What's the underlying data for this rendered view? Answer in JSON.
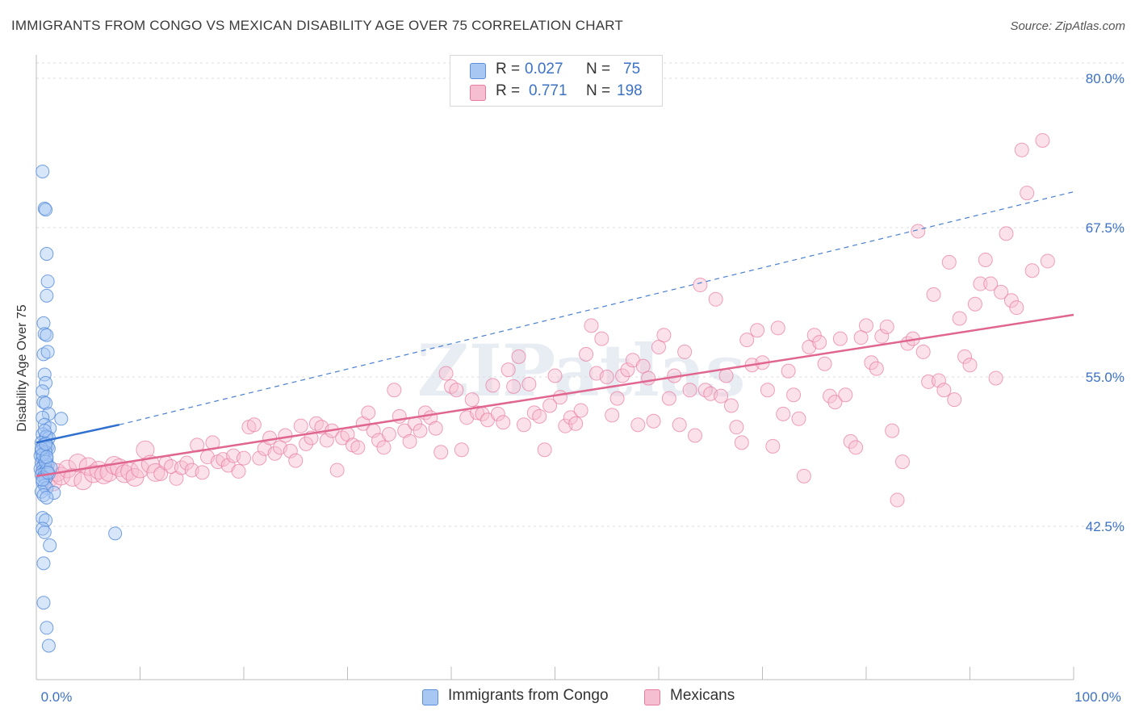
{
  "header": {
    "title": "IMMIGRANTS FROM CONGO VS MEXICAN DISABILITY AGE OVER 75 CORRELATION CHART",
    "source": "Source: ZipAtlas.com"
  },
  "legend": {
    "rows": [
      {
        "r_label": "R =",
        "r_value": "0.027",
        "n_label": "N =",
        "n_value": "75"
      },
      {
        "r_label": "R =",
        "r_value": "0.771",
        "n_label": "N =",
        "n_value": "198"
      }
    ]
  },
  "watermark": "ZIPatlas",
  "colors": {
    "congo": "#5a8fdc",
    "congo_fill": "#a9c7f3",
    "mexicans": "#e8799f",
    "mexicans_fill": "#f6bfd1",
    "tick_text": "#3c72c6"
  },
  "chart_data": {
    "type": "scatter",
    "xlabel": "",
    "ylabel": "Disability Age Over 75",
    "xlim": [
      0,
      100
    ],
    "ylim": [
      30,
      81
    ],
    "x_tick_labels": [
      "0.0%",
      "100.0%"
    ],
    "y_ticks": [
      42.5,
      55.0,
      67.5,
      80.0
    ],
    "y_tick_labels": [
      "42.5%",
      "55.0%",
      "67.5%",
      "80.0%"
    ],
    "grid": "horizontal dashed",
    "legend_position": "top-center",
    "series": [
      {
        "name": "Immigrants from Congo",
        "trend": {
          "x0": 0,
          "y0": 49.5,
          "x1": 8,
          "y1": 51.0,
          "dashed_to_x": 100,
          "dashed_to_y": 70.5
        },
        "points": [
          [
            0.6,
            72.2
          ],
          [
            0.8,
            69.1
          ],
          [
            0.9,
            69.0
          ],
          [
            1.0,
            65.3
          ],
          [
            1.1,
            63.0
          ],
          [
            1.0,
            61.8
          ],
          [
            0.7,
            59.5
          ],
          [
            0.8,
            58.6
          ],
          [
            1.0,
            58.5
          ],
          [
            0.7,
            56.9
          ],
          [
            1.1,
            57.1
          ],
          [
            0.8,
            55.2
          ],
          [
            0.9,
            54.5
          ],
          [
            0.6,
            53.8
          ],
          [
            0.7,
            52.9
          ],
          [
            0.9,
            52.8
          ],
          [
            1.2,
            51.9
          ],
          [
            0.6,
            51.6
          ],
          [
            0.8,
            51.0
          ],
          [
            1.3,
            50.7
          ],
          [
            0.6,
            50.2
          ],
          [
            0.9,
            50.0
          ],
          [
            1.0,
            50.0
          ],
          [
            1.2,
            49.9
          ],
          [
            0.5,
            49.5
          ],
          [
            0.7,
            49.3
          ],
          [
            0.9,
            49.1
          ],
          [
            1.1,
            49.2
          ],
          [
            1.2,
            49.0
          ],
          [
            0.5,
            48.8
          ],
          [
            0.7,
            48.6
          ],
          [
            0.9,
            48.7
          ],
          [
            0.4,
            48.4
          ],
          [
            0.6,
            48.2
          ],
          [
            0.8,
            48.0
          ],
          [
            1.0,
            48.1
          ],
          [
            0.5,
            47.8
          ],
          [
            0.7,
            47.6
          ],
          [
            0.9,
            47.5
          ],
          [
            1.1,
            47.6
          ],
          [
            0.4,
            47.3
          ],
          [
            0.6,
            47.1
          ],
          [
            0.8,
            47.0
          ],
          [
            1.0,
            47.2
          ],
          [
            1.2,
            46.9
          ],
          [
            0.5,
            46.8
          ],
          [
            0.7,
            46.6
          ],
          [
            0.9,
            46.5
          ],
          [
            0.6,
            46.2
          ],
          [
            0.8,
            45.9
          ],
          [
            1.0,
            45.7
          ],
          [
            0.5,
            45.4
          ],
          [
            1.7,
            45.3
          ],
          [
            0.7,
            45.1
          ],
          [
            1.0,
            44.9
          ],
          [
            0.6,
            43.2
          ],
          [
            0.9,
            43.0
          ],
          [
            0.6,
            42.3
          ],
          [
            0.8,
            42.0
          ],
          [
            1.3,
            40.9
          ],
          [
            0.7,
            39.4
          ],
          [
            0.7,
            36.1
          ],
          [
            1.0,
            34.0
          ],
          [
            1.2,
            32.5
          ],
          [
            7.6,
            41.9
          ],
          [
            2.4,
            51.5
          ],
          [
            0.6,
            48.5
          ],
          [
            0.9,
            47.9
          ],
          [
            1.4,
            47.4
          ],
          [
            0.5,
            49.0
          ],
          [
            0.8,
            50.5
          ],
          [
            1.0,
            48.3
          ],
          [
            0.6,
            46.4
          ],
          [
            0.9,
            49.4
          ],
          [
            1.1,
            47.0
          ]
        ]
      },
      {
        "name": "Mexicans",
        "trend": {
          "x0": 0,
          "y0": 46.7,
          "x1": 100,
          "y1": 60.2
        },
        "points": [
          [
            0.8,
            47.1
          ],
          [
            1.2,
            46.5
          ],
          [
            1.6,
            46.2
          ],
          [
            2.0,
            47.0
          ],
          [
            2.4,
            46.7
          ],
          [
            3.0,
            47.3
          ],
          [
            3.5,
            46.6
          ],
          [
            4.0,
            47.8
          ],
          [
            4.5,
            46.3
          ],
          [
            5.0,
            47.5
          ],
          [
            5.5,
            46.9
          ],
          [
            6.0,
            47.2
          ],
          [
            6.5,
            46.8
          ],
          [
            7.0,
            47.0
          ],
          [
            7.5,
            47.6
          ],
          [
            8.0,
            47.4
          ],
          [
            8.5,
            46.9
          ],
          [
            9.0,
            47.1
          ],
          [
            9.5,
            46.6
          ],
          [
            10.0,
            47.3
          ],
          [
            10.5,
            48.9
          ],
          [
            11.0,
            47.7
          ],
          [
            11.5,
            47.0
          ],
          [
            12.0,
            46.9
          ],
          [
            12.5,
            47.8
          ],
          [
            13.0,
            47.5
          ],
          [
            13.5,
            46.5
          ],
          [
            14.0,
            47.4
          ],
          [
            14.5,
            47.8
          ],
          [
            15.0,
            47.2
          ],
          [
            15.5,
            49.3
          ],
          [
            16.0,
            47.0
          ],
          [
            16.5,
            48.3
          ],
          [
            17.0,
            49.5
          ],
          [
            17.5,
            47.9
          ],
          [
            18.0,
            48.1
          ],
          [
            18.5,
            47.6
          ],
          [
            19.0,
            48.4
          ],
          [
            19.5,
            47.1
          ],
          [
            20.0,
            48.2
          ],
          [
            20.5,
            50.8
          ],
          [
            21.0,
            51.0
          ],
          [
            21.5,
            48.2
          ],
          [
            22.0,
            49.0
          ],
          [
            22.5,
            49.9
          ],
          [
            23.0,
            48.6
          ],
          [
            23.5,
            49.1
          ],
          [
            24.0,
            50.1
          ],
          [
            24.5,
            48.8
          ],
          [
            25.0,
            48.0
          ],
          [
            25.5,
            50.9
          ],
          [
            26.0,
            49.4
          ],
          [
            26.5,
            49.9
          ],
          [
            27.0,
            51.1
          ],
          [
            27.5,
            50.8
          ],
          [
            28.0,
            49.7
          ],
          [
            28.5,
            50.5
          ],
          [
            29.0,
            47.2
          ],
          [
            29.5,
            49.9
          ],
          [
            30.0,
            50.2
          ],
          [
            30.5,
            49.3
          ],
          [
            31.0,
            49.1
          ],
          [
            31.5,
            51.1
          ],
          [
            32.0,
            52.0
          ],
          [
            32.5,
            50.5
          ],
          [
            33.0,
            49.7
          ],
          [
            33.5,
            49.1
          ],
          [
            34.0,
            50.2
          ],
          [
            34.5,
            53.9
          ],
          [
            35.0,
            51.7
          ],
          [
            35.5,
            50.5
          ],
          [
            36.0,
            49.6
          ],
          [
            36.5,
            51.1
          ],
          [
            37.0,
            50.5
          ],
          [
            37.5,
            52.0
          ],
          [
            38.0,
            51.6
          ],
          [
            38.5,
            50.7
          ],
          [
            39.0,
            48.7
          ],
          [
            39.5,
            55.3
          ],
          [
            40.0,
            54.2
          ],
          [
            40.5,
            53.9
          ],
          [
            41.0,
            48.9
          ],
          [
            41.5,
            51.6
          ],
          [
            42.0,
            53.1
          ],
          [
            42.5,
            52.0
          ],
          [
            43.0,
            51.9
          ],
          [
            43.5,
            51.4
          ],
          [
            44.0,
            54.3
          ],
          [
            44.5,
            51.9
          ],
          [
            45.0,
            51.2
          ],
          [
            45.5,
            55.6
          ],
          [
            46.0,
            54.2
          ],
          [
            46.5,
            56.7
          ],
          [
            47.0,
            51.0
          ],
          [
            47.5,
            54.4
          ],
          [
            48.0,
            52.0
          ],
          [
            48.5,
            51.7
          ],
          [
            49.0,
            48.9
          ],
          [
            49.5,
            52.6
          ],
          [
            50.0,
            55.1
          ],
          [
            50.5,
            53.3
          ],
          [
            51.0,
            50.9
          ],
          [
            51.5,
            51.6
          ],
          [
            52.0,
            51.1
          ],
          [
            52.5,
            52.2
          ],
          [
            53.0,
            56.9
          ],
          [
            53.5,
            59.3
          ],
          [
            54.0,
            55.3
          ],
          [
            54.5,
            58.2
          ],
          [
            55.0,
            55.0
          ],
          [
            55.5,
            51.8
          ],
          [
            56.0,
            53.2
          ],
          [
            56.5,
            55.1
          ],
          [
            57.0,
            55.6
          ],
          [
            57.5,
            56.4
          ],
          [
            58.0,
            51.0
          ],
          [
            58.5,
            55.9
          ],
          [
            59.0,
            54.9
          ],
          [
            59.5,
            51.3
          ],
          [
            60.0,
            57.5
          ],
          [
            60.5,
            58.5
          ],
          [
            61.0,
            53.2
          ],
          [
            61.5,
            55.1
          ],
          [
            62.0,
            51.0
          ],
          [
            62.5,
            57.1
          ],
          [
            63.0,
            53.9
          ],
          [
            63.5,
            50.1
          ],
          [
            64.0,
            62.7
          ],
          [
            64.5,
            53.9
          ],
          [
            65.0,
            53.6
          ],
          [
            65.5,
            61.5
          ],
          [
            66.0,
            53.4
          ],
          [
            66.5,
            55.1
          ],
          [
            67.0,
            52.6
          ],
          [
            67.5,
            50.8
          ],
          [
            68.0,
            49.5
          ],
          [
            68.5,
            58.1
          ],
          [
            69.0,
            56.0
          ],
          [
            69.5,
            58.9
          ],
          [
            70.0,
            56.2
          ],
          [
            70.5,
            53.9
          ],
          [
            71.0,
            49.2
          ],
          [
            71.5,
            59.1
          ],
          [
            72.0,
            51.9
          ],
          [
            72.5,
            55.5
          ],
          [
            73.0,
            53.5
          ],
          [
            73.5,
            51.5
          ],
          [
            74.0,
            46.7
          ],
          [
            74.5,
            57.5
          ],
          [
            75.0,
            58.5
          ],
          [
            75.5,
            57.9
          ],
          [
            76.0,
            56.1
          ],
          [
            76.5,
            53.4
          ],
          [
            77.0,
            52.9
          ],
          [
            77.5,
            58.2
          ],
          [
            78.0,
            53.5
          ],
          [
            78.5,
            49.6
          ],
          [
            79.0,
            49.1
          ],
          [
            79.5,
            58.3
          ],
          [
            80.0,
            59.3
          ],
          [
            80.5,
            56.2
          ],
          [
            81.0,
            55.7
          ],
          [
            81.5,
            58.4
          ],
          [
            82.0,
            59.2
          ],
          [
            82.5,
            50.5
          ],
          [
            83.0,
            44.7
          ],
          [
            83.5,
            47.9
          ],
          [
            84.0,
            57.8
          ],
          [
            84.5,
            58.2
          ],
          [
            85.0,
            67.2
          ],
          [
            85.5,
            57.1
          ],
          [
            86.0,
            54.6
          ],
          [
            86.5,
            61.9
          ],
          [
            87.0,
            54.7
          ],
          [
            87.5,
            53.9
          ],
          [
            88.0,
            64.6
          ],
          [
            88.5,
            53.1
          ],
          [
            89.0,
            59.9
          ],
          [
            89.5,
            56.7
          ],
          [
            90.0,
            56.0
          ],
          [
            90.5,
            61.1
          ],
          [
            91.0,
            62.8
          ],
          [
            91.5,
            64.8
          ],
          [
            92.0,
            62.8
          ],
          [
            92.5,
            54.9
          ],
          [
            93.0,
            62.1
          ],
          [
            93.5,
            67.0
          ],
          [
            94.0,
            61.4
          ],
          [
            94.5,
            60.8
          ],
          [
            95.0,
            74.0
          ],
          [
            95.5,
            70.4
          ],
          [
            96.0,
            63.9
          ],
          [
            97.0,
            74.8
          ],
          [
            97.5,
            64.7
          ]
        ]
      }
    ]
  },
  "bottom_legend": {
    "congo_label": "Immigrants from Congo",
    "mexicans_label": "Mexicans"
  }
}
